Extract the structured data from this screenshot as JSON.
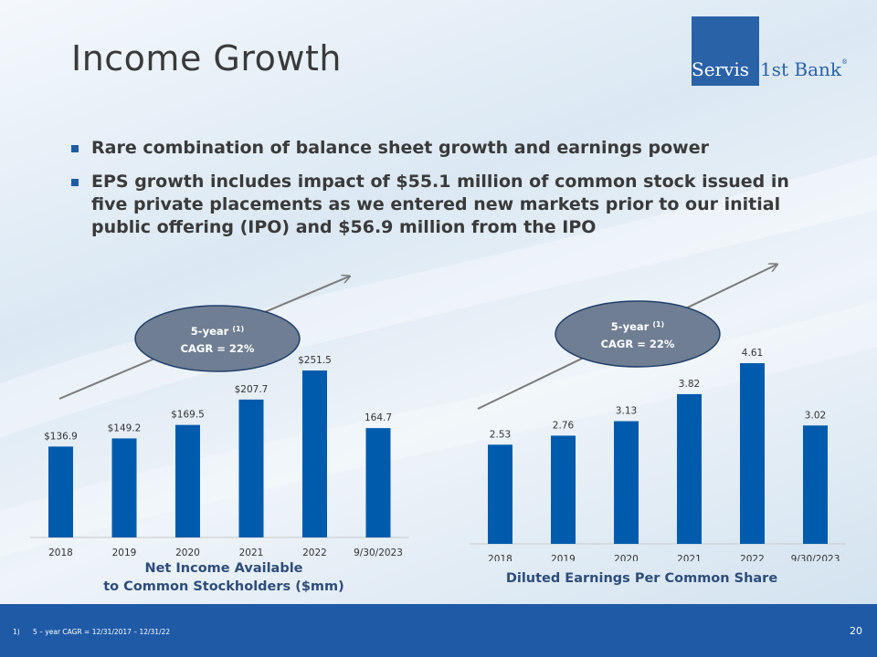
{
  "title": "Income Growth",
  "logo": {
    "part1": "Servis",
    "part2": "1st Bank",
    "reg": "®"
  },
  "bullets": [
    "Rare combination of balance sheet growth and earnings power",
    "EPS growth includes impact of $55.1 million of common stock issued in five private placements as we entered new markets prior to our initial public offering (IPO) and $56.9 million from the IPO"
  ],
  "colors": {
    "bar": "#005bac",
    "accent": "#1f5aa6",
    "ellipse": "#6f7e92"
  },
  "chart_data": [
    {
      "type": "bar",
      "categories": [
        "2018",
        "2019",
        "2020",
        "2021",
        "2022",
        "9/30/2023"
      ],
      "values": [
        136.9,
        149.2,
        169.5,
        207.7,
        251.5,
        164.7
      ],
      "value_labels": [
        "$136.9",
        "$149.2",
        "$169.5",
        "$207.7",
        "$251.5",
        "164.7"
      ],
      "caption_line1": "Net Income Available",
      "caption_line2": "to Common Stockholders ($mm)",
      "badge_line1": "5-year",
      "badge_sup": "(1)",
      "badge_line2": "CAGR = 22%",
      "ylim": [
        0,
        251.5
      ]
    },
    {
      "type": "bar",
      "categories": [
        "2018",
        "2019",
        "2020",
        "2021",
        "2022",
        "9/30/2023"
      ],
      "values": [
        2.53,
        2.76,
        3.13,
        3.82,
        4.61,
        3.02
      ],
      "value_labels": [
        "2.53",
        "2.76",
        "3.13",
        "3.82",
        "4.61",
        "3.02"
      ],
      "caption_line1": "Diluted Earnings Per Common Share",
      "caption_line2": "",
      "badge_line1": "5-year",
      "badge_sup": "(1)",
      "badge_line2": "CAGR = 22%",
      "ylim": [
        0,
        4.61
      ]
    }
  ],
  "footer": {
    "footnote": "1)      5 – year CAGR = 12/31/2017 – 12/31/22",
    "page_number": "20"
  }
}
